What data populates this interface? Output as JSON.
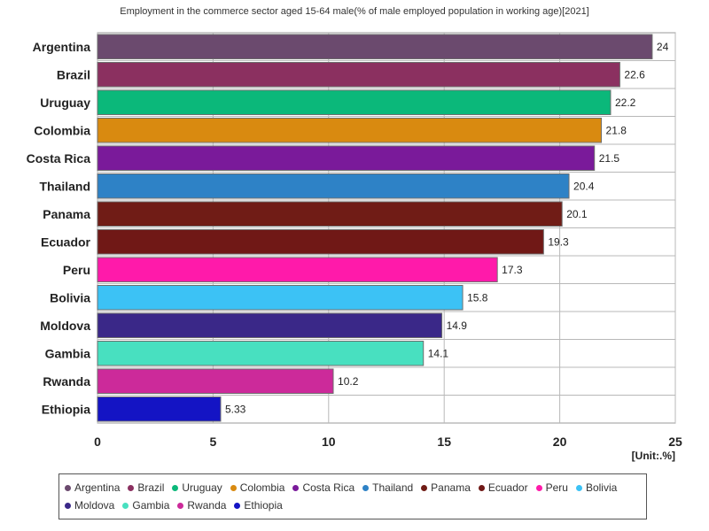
{
  "chart_data": {
    "type": "bar",
    "orientation": "horizontal",
    "title": "Employment in the commerce sector aged 15-64 male(% of male employed population in working age)[2021]",
    "unit_label": "[Unit:.%]",
    "categories": [
      "Argentina",
      "Brazil",
      "Uruguay",
      "Colombia",
      "Costa Rica",
      "Thailand",
      "Panama",
      "Ecuador",
      "Peru",
      "Bolivia",
      "Moldova",
      "Gambia",
      "Rwanda",
      "Ethiopia"
    ],
    "values": [
      24,
      22.6,
      22.2,
      21.8,
      21.5,
      20.4,
      20.1,
      19.3,
      17.3,
      15.8,
      14.9,
      14.1,
      10.2,
      5.33
    ],
    "value_labels": [
      "24",
      "22.6",
      "22.2",
      "21.8",
      "21.5",
      "20.4",
      "20.1",
      "19.3",
      "17.3",
      "15.8",
      "14.9",
      "14.1",
      "10.2",
      "5.33"
    ],
    "colors": [
      "#6b4a6e",
      "#8b3060",
      "#0bb87a",
      "#d98a10",
      "#7a1a9a",
      "#2e82c6",
      "#701c16",
      "#701816",
      "#ff1aaa",
      "#3cc2f5",
      "#3a2888",
      "#48e0c0",
      "#cc2a9a",
      "#1414c4"
    ],
    "xlim": [
      0,
      25
    ],
    "xticks": [
      0,
      5,
      10,
      15,
      20,
      25
    ],
    "xtick_labels": [
      "0",
      "5",
      "10",
      "15",
      "20",
      "25"
    ],
    "grid": true,
    "legend_position": "bottom"
  }
}
